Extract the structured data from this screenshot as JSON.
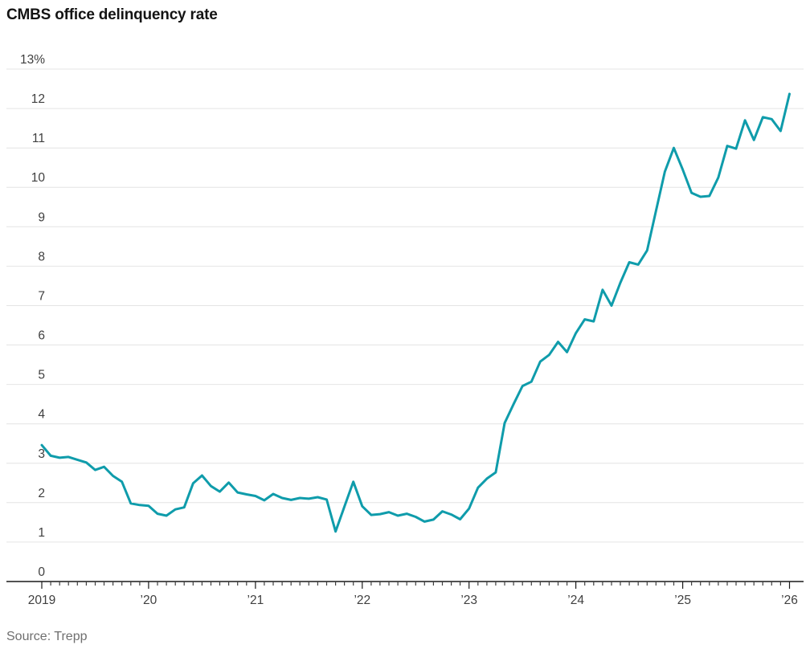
{
  "page": {
    "title": "CMBS office delinquency rate",
    "source": "Source: Trepp"
  },
  "chart_data": {
    "type": "line",
    "title": "CMBS office delinquency rate",
    "source": "Source: Trepp",
    "x_unit": "month",
    "x_start": "2019-01",
    "x_end": "2026-01",
    "ylim": [
      0,
      13
    ],
    "grid": "horizontal",
    "legend": "none",
    "y_ticks": [
      0,
      1,
      2,
      3,
      4,
      5,
      6,
      7,
      8,
      9,
      10,
      11,
      12,
      13
    ],
    "y_top_label": "13%",
    "x_tick_labels": [
      "2019",
      "’20",
      "’21",
      "’22",
      "’23",
      "’24",
      "’25",
      "’26"
    ],
    "x_tick_month_indices": [
      0,
      12,
      24,
      36,
      48,
      60,
      72,
      84
    ],
    "colors": {
      "line": "#0f9cab",
      "grid": "#e4e4e4",
      "axis": "#1a1a1a",
      "tick": "#3f3f3f",
      "labels": "#3f3f3f",
      "title": "#141414",
      "source": "#6f6f6f"
    },
    "series": [
      {
        "name": "CMBS office delinquency rate (%)",
        "values": [
          3.46,
          3.19,
          3.14,
          3.16,
          3.09,
          3.02,
          2.83,
          2.91,
          2.68,
          2.53,
          1.98,
          1.94,
          1.92,
          1.72,
          1.67,
          1.83,
          1.88,
          2.49,
          2.69,
          2.42,
          2.28,
          2.51,
          2.26,
          2.21,
          2.17,
          2.06,
          2.22,
          2.12,
          2.07,
          2.12,
          2.1,
          2.14,
          2.08,
          1.27,
          1.9,
          2.53,
          1.91,
          1.69,
          1.71,
          1.76,
          1.67,
          1.72,
          1.64,
          1.52,
          1.57,
          1.78,
          1.7,
          1.58,
          1.85,
          2.38,
          2.61,
          2.77,
          4.02,
          4.5,
          4.96,
          5.07,
          5.58,
          5.75,
          6.08,
          5.82,
          6.3,
          6.65,
          6.6,
          7.4,
          7.0,
          7.58,
          8.1,
          8.04,
          8.4,
          9.4,
          10.4,
          11.0,
          10.45,
          9.86,
          9.76,
          9.78,
          10.25,
          11.05,
          10.98,
          11.7,
          11.2,
          11.78,
          11.73,
          11.43,
          12.37
        ]
      }
    ]
  }
}
